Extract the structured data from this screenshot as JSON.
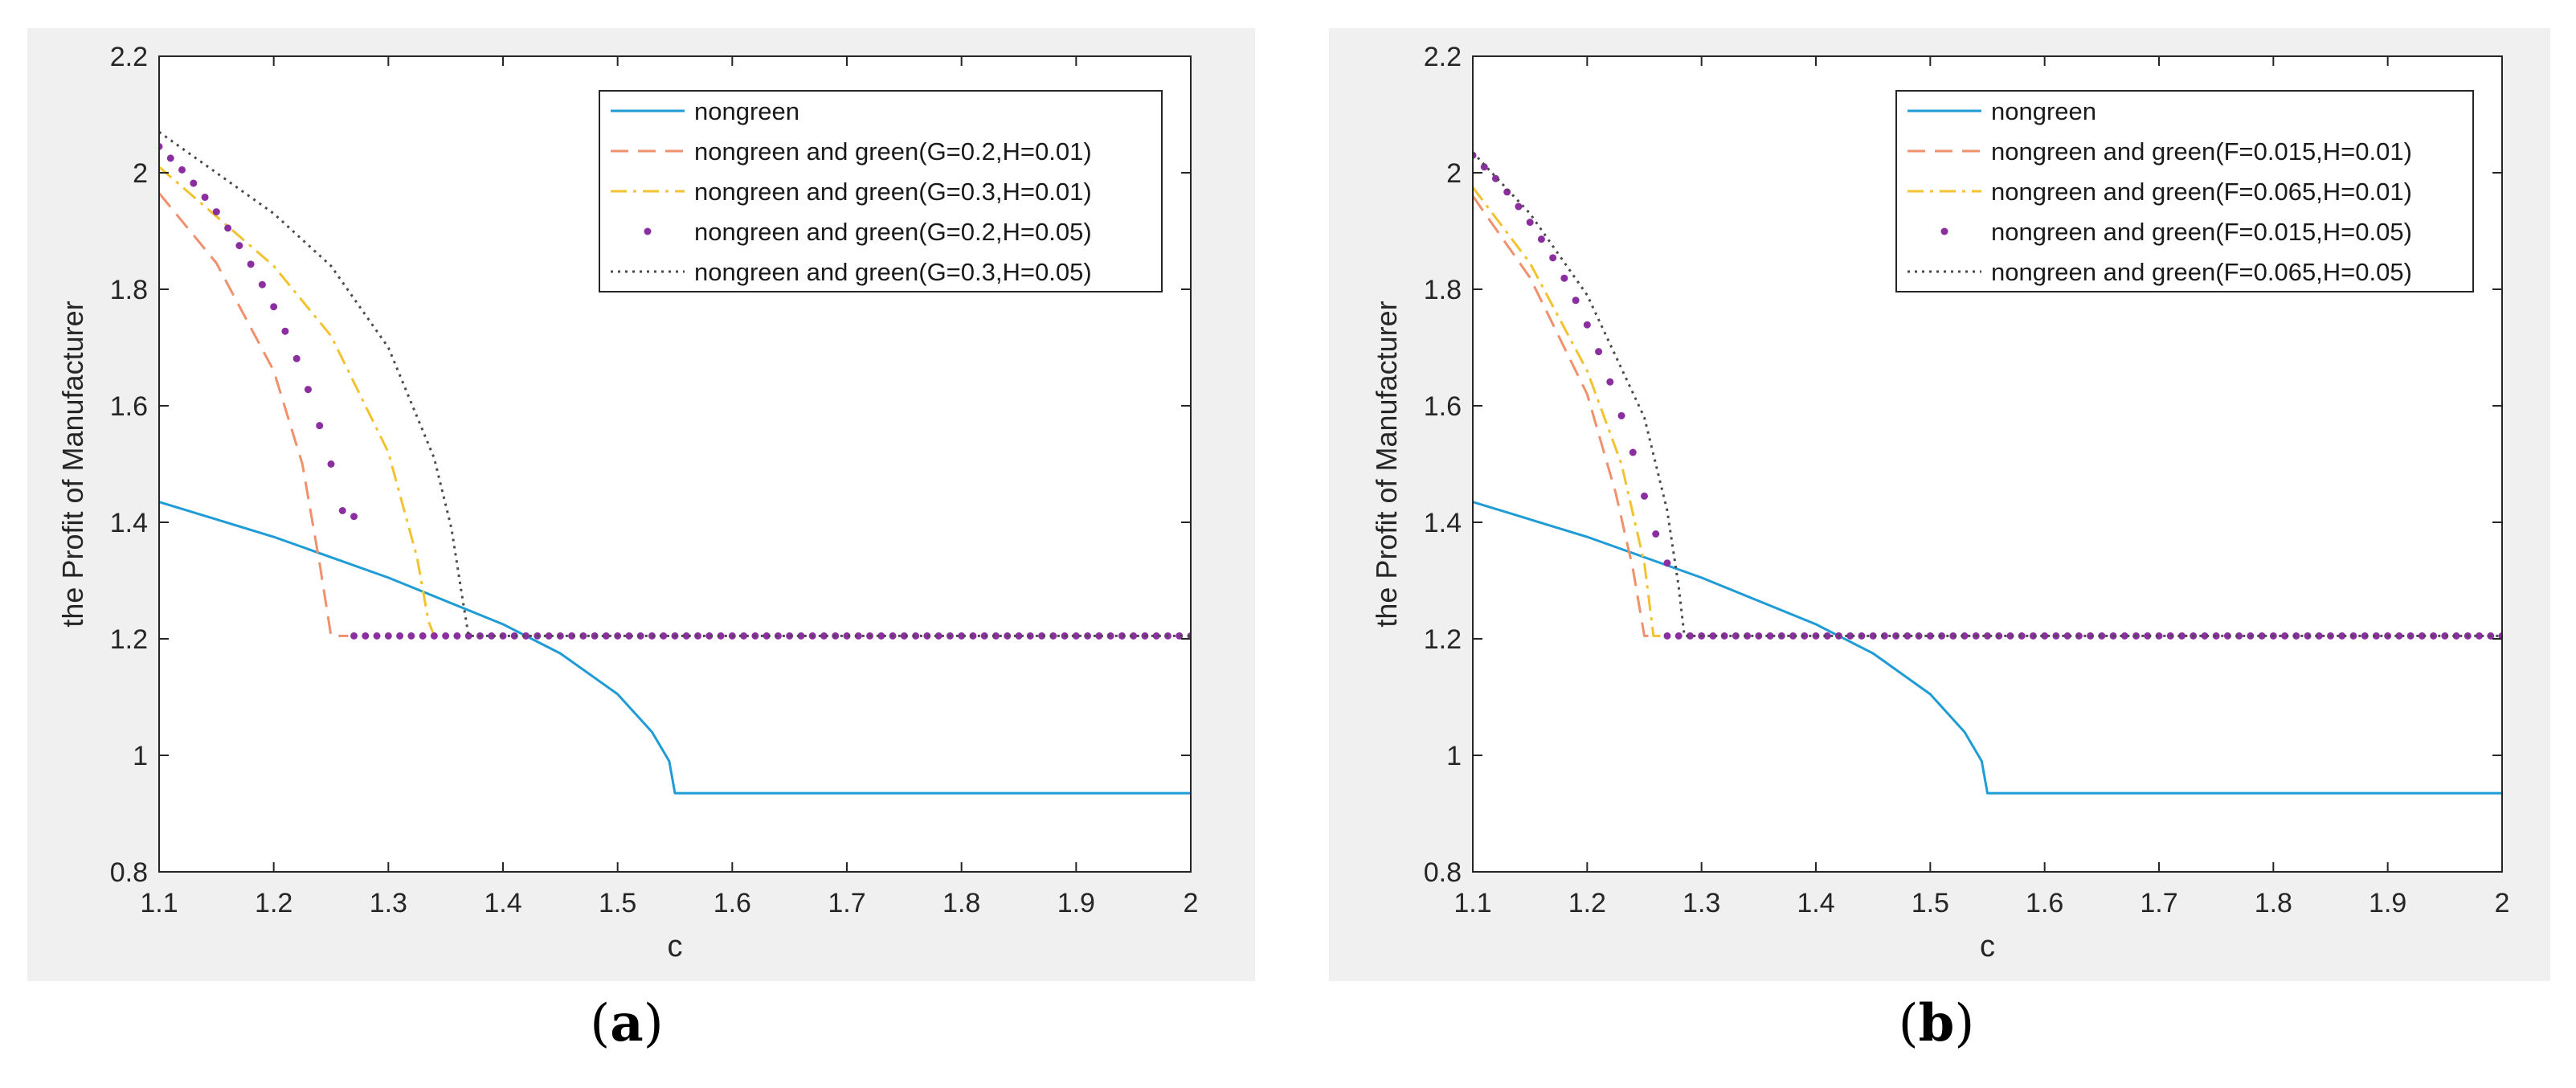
{
  "chart_data": [
    {
      "type": "line",
      "panel": "a",
      "caption": "(a)",
      "xlabel": "c",
      "ylabel": "the Profit of Manufacturer",
      "xlim": [
        1.1,
        2.0
      ],
      "ylim": [
        0.8,
        2.2
      ],
      "xticks": [
        "1.1",
        "1.2",
        "1.3",
        "1.4",
        "1.5",
        "1.6",
        "1.7",
        "1.8",
        "1.9",
        "2"
      ],
      "yticks": [
        "0.8",
        "1",
        "1.2",
        "1.4",
        "1.6",
        "1.8",
        "2",
        "2.2"
      ],
      "legend_position": "top-right",
      "series": [
        {
          "name": "nongreen",
          "style": "solid",
          "color": "#1f9bd6",
          "x": [
            1.1,
            1.2,
            1.3,
            1.4,
            1.45,
            1.5,
            1.53,
            1.545,
            1.55,
            2.0
          ],
          "y": [
            1.435,
            1.375,
            1.305,
            1.225,
            1.175,
            1.105,
            1.04,
            0.99,
            0.935,
            0.935
          ]
        },
        {
          "name": "nongreen and green(G=0.2,H=0.01)",
          "style": "dashed",
          "color": "#f0906c",
          "x": [
            1.1,
            1.15,
            1.2,
            1.225,
            1.24,
            1.25,
            1.265
          ],
          "y": [
            1.965,
            1.845,
            1.66,
            1.5,
            1.33,
            1.205,
            1.205
          ]
        },
        {
          "name": "nongreen and green(G=0.3,H=0.01)",
          "style": "dashdot",
          "color": "#f2c230",
          "x": [
            1.1,
            1.2,
            1.25,
            1.3,
            1.325,
            1.335,
            1.34
          ],
          "y": [
            2.01,
            1.84,
            1.72,
            1.52,
            1.34,
            1.23,
            1.205
          ]
        },
        {
          "name": "nongreen and green(G=0.2,H=0.05)",
          "style": "dots",
          "color": "#8b2fa0",
          "x": [
            1.1,
            1.11,
            1.12,
            1.13,
            1.14,
            1.15,
            1.16,
            1.17,
            1.18,
            1.19,
            1.2,
            1.21,
            1.22,
            1.23,
            1.24,
            1.25,
            1.26,
            1.27
          ],
          "y": [
            2.045,
            2.025,
            2.005,
            1.982,
            1.958,
            1.933,
            1.905,
            1.875,
            1.843,
            1.808,
            1.77,
            1.728,
            1.681,
            1.628,
            1.566,
            1.5,
            1.42,
            1.41
          ]
        },
        {
          "name": "nongreen and green(G=0.3,H=0.05)",
          "style": "dotted",
          "color": "#4a4a4a",
          "x": [
            1.1,
            1.2,
            1.25,
            1.3,
            1.34,
            1.355,
            1.365,
            1.37,
            2.0
          ],
          "y": [
            2.07,
            1.93,
            1.84,
            1.7,
            1.51,
            1.39,
            1.265,
            1.205,
            1.205
          ]
        }
      ],
      "dots_flat": {
        "series": "nongreen and green(G=0.2,H=0.05)",
        "y": 1.205,
        "x_from": 1.27,
        "x_to": 2.0,
        "step": 0.01
      }
    },
    {
      "type": "line",
      "panel": "b",
      "caption": "(b)",
      "xlabel": "c",
      "ylabel": "the Profit of Manufacturer",
      "xlim": [
        1.1,
        2.0
      ],
      "ylim": [
        0.8,
        2.2
      ],
      "xticks": [
        "1.1",
        "1.2",
        "1.3",
        "1.4",
        "1.5",
        "1.6",
        "1.7",
        "1.8",
        "1.9",
        "2"
      ],
      "yticks": [
        "0.8",
        "1",
        "1.2",
        "1.4",
        "1.6",
        "1.8",
        "2",
        "2.2"
      ],
      "legend_position": "top-right",
      "series": [
        {
          "name": "nongreen",
          "style": "solid",
          "color": "#1f9bd6",
          "x": [
            1.1,
            1.2,
            1.3,
            1.4,
            1.45,
            1.5,
            1.53,
            1.545,
            1.55,
            2.0
          ],
          "y": [
            1.435,
            1.375,
            1.305,
            1.225,
            1.175,
            1.105,
            1.04,
            0.99,
            0.935,
            0.935
          ]
        },
        {
          "name": "nongreen and green(F=0.015,H=0.01)",
          "style": "dashed",
          "color": "#f0906c",
          "x": [
            1.1,
            1.15,
            1.2,
            1.225,
            1.24,
            1.25,
            1.26
          ],
          "y": [
            1.96,
            1.82,
            1.62,
            1.45,
            1.32,
            1.205,
            1.205
          ]
        },
        {
          "name": "nongreen and green(F=0.065,H=0.01)",
          "style": "dashdot",
          "color": "#f2c230",
          "x": [
            1.1,
            1.15,
            1.2,
            1.23,
            1.25,
            1.258,
            1.265
          ],
          "y": [
            1.975,
            1.845,
            1.66,
            1.5,
            1.33,
            1.205,
            1.205
          ]
        },
        {
          "name": "nongreen and green(F=0.015,H=0.05)",
          "style": "dots",
          "color": "#8b2fa0",
          "x": [
            1.1,
            1.11,
            1.12,
            1.13,
            1.14,
            1.15,
            1.16,
            1.17,
            1.18,
            1.19,
            1.2,
            1.21,
            1.22,
            1.23,
            1.24,
            1.25,
            1.26,
            1.27
          ],
          "y": [
            2.03,
            2.01,
            1.99,
            1.967,
            1.942,
            1.915,
            1.886,
            1.854,
            1.819,
            1.781,
            1.739,
            1.693,
            1.641,
            1.583,
            1.52,
            1.445,
            1.38,
            1.33
          ]
        },
        {
          "name": "nongreen and green(F=0.065,H=0.05)",
          "style": "dotted",
          "color": "#4a4a4a",
          "x": [
            1.1,
            1.15,
            1.2,
            1.25,
            1.27,
            1.28,
            1.285,
            2.0
          ],
          "y": [
            2.035,
            1.93,
            1.79,
            1.58,
            1.42,
            1.29,
            1.205,
            1.205
          ]
        }
      ],
      "dots_flat": {
        "series": "nongreen and green(F=0.015,H=0.05)",
        "y": 1.205,
        "x_from": 1.27,
        "x_to": 2.0,
        "step": 0.01
      }
    }
  ]
}
